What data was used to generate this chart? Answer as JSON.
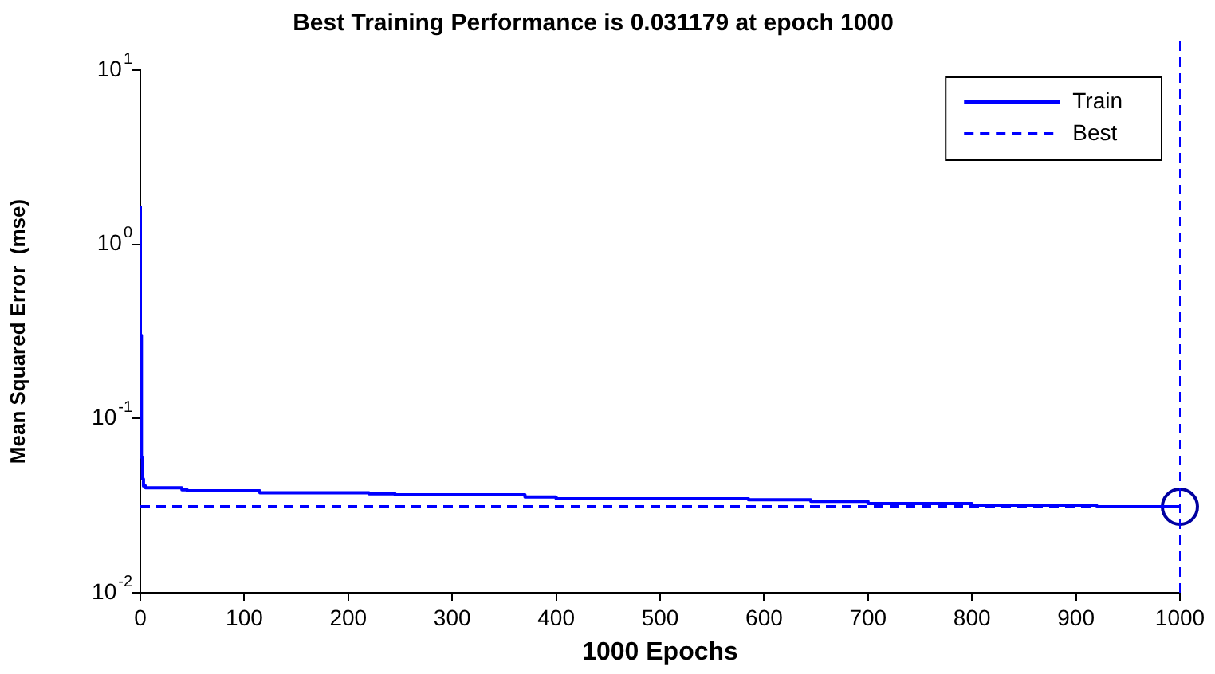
{
  "chart_data": {
    "type": "line",
    "title": "Best Training Performance is 0.031179 at epoch 1000",
    "xlabel": "1000 Epochs",
    "ylabel": "Mean Squared Error  (mse)",
    "log": "y",
    "grid": false,
    "legend": "top right",
    "xlim": [
      0,
      1000
    ],
    "xticks": [
      0,
      100,
      200,
      300,
      400,
      500,
      600,
      700,
      800,
      900,
      1000
    ],
    "ylim": [
      0.01,
      10
    ],
    "yticks": [
      {
        "value": 0.01,
        "label": "10$^{-2}$"
      },
      {
        "value": 0.1,
        "label": "10$^{-1}$"
      },
      {
        "value": 1,
        "label": "10$^{0}$"
      },
      {
        "value": 10,
        "label": "10$^{1}$"
      }
    ],
    "series": [
      {
        "name": "Train",
        "type": "step",
        "color": "#0000ff",
        "x": [
          0,
          1,
          2,
          3,
          5,
          40,
          45,
          115,
          220,
          245,
          370,
          400,
          585,
          645,
          700,
          800,
          920,
          980,
          1000
        ],
        "values": [
          1.67,
          0.3,
          0.06,
          0.045,
          0.041,
          0.04,
          0.039,
          0.0385,
          0.0375,
          0.037,
          0.0365,
          0.0355,
          0.0346,
          0.0342,
          0.0335,
          0.0325,
          0.0316,
          0.0312,
          0.031179
        ]
      },
      {
        "name": "Best",
        "line_style": "dashed",
        "color": "#0000ff",
        "x": [
          0,
          1000
        ],
        "values": [
          0.031179,
          0.031179
        ]
      },
      {
        "type": "scatter",
        "marker": "circle",
        "color": "#0000a0",
        "x": [
          1000
        ],
        "values": [
          0.031179
        ]
      }
    ],
    "ref_lines": [
      {
        "axis": "x",
        "value": 1000,
        "color": "#0000ff",
        "line_style": "dashed"
      }
    ]
  }
}
